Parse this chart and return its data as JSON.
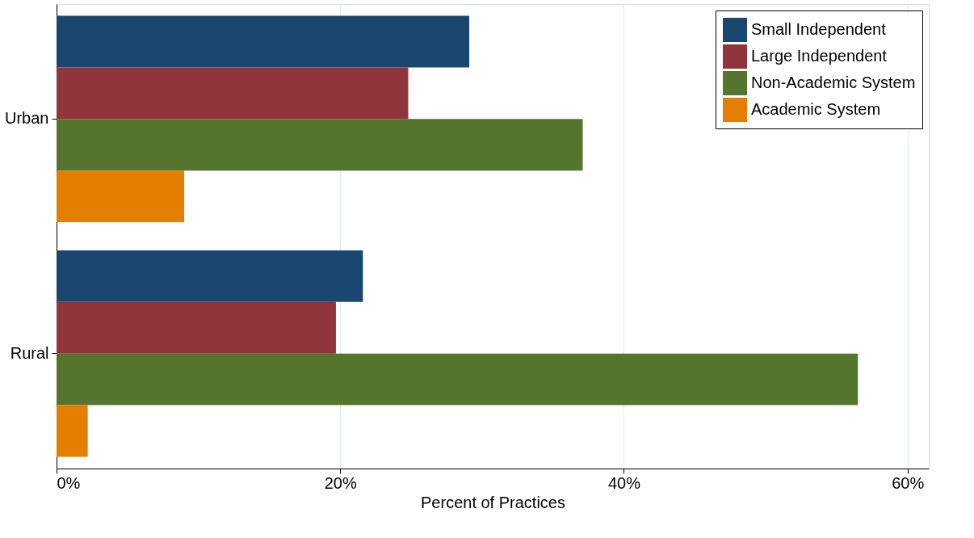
{
  "chart_data": {
    "type": "bar",
    "orientation": "horizontal",
    "xlabel": "Percent of Practices",
    "categories": [
      "Urban",
      "Rural"
    ],
    "series": [
      {
        "name": "Small Independent",
        "color": "#1a476f",
        "values": [
          29.1,
          21.6
        ]
      },
      {
        "name": "Large Independent",
        "color": "#90353b",
        "values": [
          24.8,
          19.7
        ]
      },
      {
        "name": "Non-Academic System",
        "color": "#55752f",
        "values": [
          37.1,
          56.5
        ]
      },
      {
        "name": "Academic System",
        "color": "#e37e00",
        "values": [
          9.0,
          2.2
        ]
      }
    ],
    "xlim": [
      0,
      61.5
    ],
    "xticks": [
      {
        "value": 0,
        "label": "0%"
      },
      {
        "value": 20,
        "label": "20%"
      },
      {
        "value": 40,
        "label": "40%"
      },
      {
        "value": 60,
        "label": "60%"
      }
    ],
    "grid": "x",
    "legend": "top right"
  }
}
